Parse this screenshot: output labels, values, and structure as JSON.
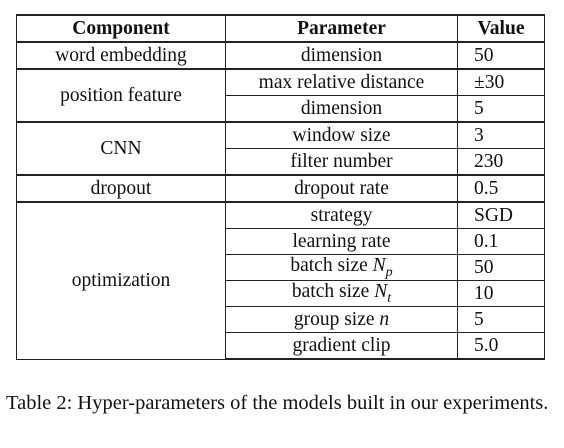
{
  "table": {
    "headers": {
      "component": "Component",
      "parameter": "Parameter",
      "value": "Value"
    },
    "groups": [
      {
        "component": "word embedding",
        "rows": [
          {
            "parameter": "dimension",
            "value": "50"
          }
        ]
      },
      {
        "component": "position feature",
        "rows": [
          {
            "parameter": "max relative distance",
            "value": "±30"
          },
          {
            "parameter": "dimension",
            "value": "5"
          }
        ]
      },
      {
        "component": "CNN",
        "rows": [
          {
            "parameter": "window size",
            "value": "3"
          },
          {
            "parameter": "filter number",
            "value": "230"
          }
        ]
      },
      {
        "component": "dropout",
        "rows": [
          {
            "parameter": "dropout rate",
            "value": "0.5"
          }
        ]
      },
      {
        "component": "optimization",
        "rows": [
          {
            "parameter": "strategy",
            "value": "SGD"
          },
          {
            "parameter": "learning rate",
            "value": "0.1"
          },
          {
            "parameter": "batch size ",
            "var_base": "N",
            "var_sub": "p",
            "value": "50"
          },
          {
            "parameter": "batch size ",
            "var_base": "N",
            "var_sub": "t",
            "value": "10"
          },
          {
            "parameter": "group size ",
            "var_base": "n",
            "value": "5"
          },
          {
            "parameter": "gradient clip",
            "value": "5.0"
          }
        ]
      }
    ]
  },
  "caption": "Table 2: Hyper-parameters of the models built in our experiments."
}
